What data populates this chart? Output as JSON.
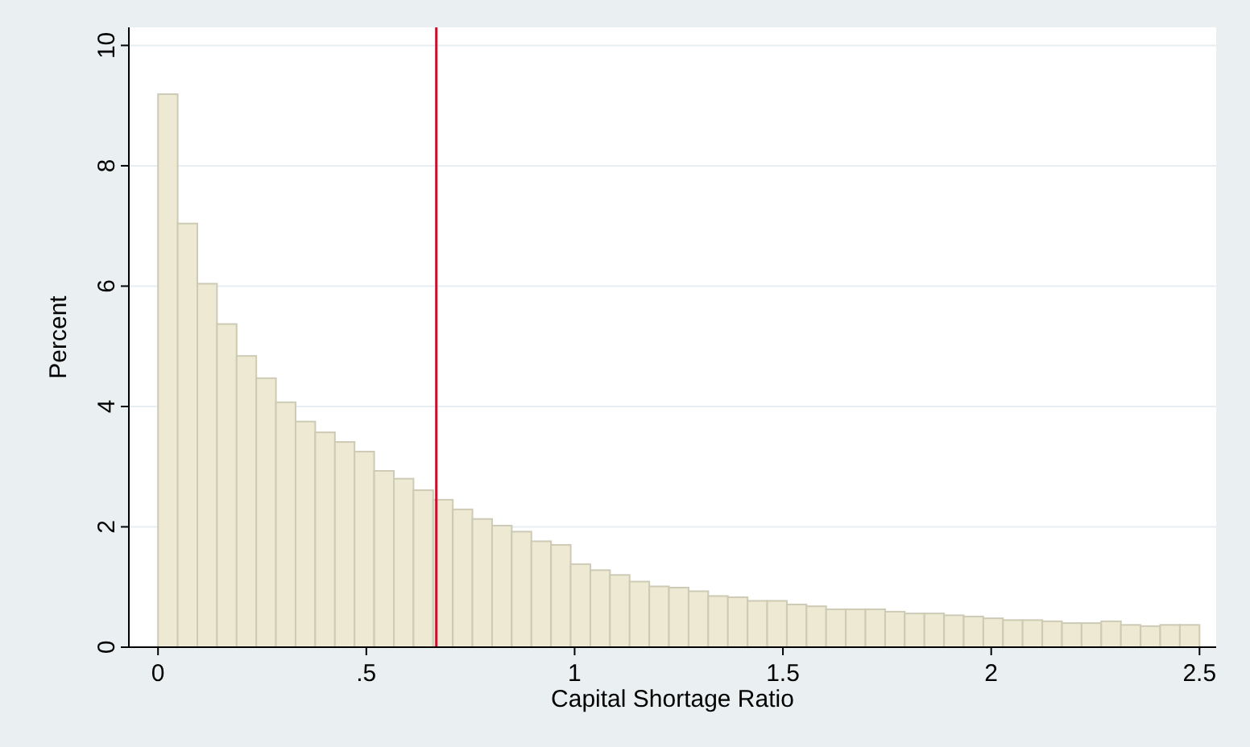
{
  "chart_data": {
    "type": "histogram",
    "xlabel": "Capital Shortage Ratio",
    "ylabel": "Percent",
    "bins": [
      0,
      0.04717,
      0.09434,
      0.14151,
      0.18868,
      0.23585,
      0.28302,
      0.33019,
      0.37736,
      0.42453,
      0.4717,
      0.51887,
      0.56604,
      0.61321,
      0.66038,
      0.70755,
      0.75472,
      0.80189,
      0.84906,
      0.89623,
      0.9434,
      0.99057,
      1.03774,
      1.08491,
      1.13208,
      1.17925,
      1.22642,
      1.27358,
      1.32075,
      1.36792,
      1.41509,
      1.46226,
      1.50943,
      1.5566,
      1.60377,
      1.65094,
      1.69811,
      1.74528,
      1.79245,
      1.83962,
      1.88679,
      1.93396,
      1.98113,
      2.0283,
      2.07547,
      2.12264,
      2.16981,
      2.21698,
      2.26415,
      2.31132,
      2.35849,
      2.40566,
      2.45283,
      2.5
    ],
    "values": [
      9.19,
      7.04,
      6.04,
      5.37,
      4.84,
      4.47,
      4.07,
      3.75,
      3.57,
      3.41,
      3.25,
      2.93,
      2.8,
      2.61,
      2.45,
      2.29,
      2.13,
      2.02,
      1.92,
      1.76,
      1.7,
      1.38,
      1.28,
      1.2,
      1.09,
      1.01,
      0.99,
      0.93,
      0.85,
      0.83,
      0.77,
      0.77,
      0.71,
      0.68,
      0.63,
      0.63,
      0.63,
      0.59,
      0.56,
      0.56,
      0.53,
      0.51,
      0.48,
      0.45,
      0.45,
      0.43,
      0.4,
      0.4,
      0.43,
      0.37,
      0.35,
      0.37,
      0.37
    ],
    "color": "#ede9d2",
    "xlim": [
      -0.07,
      2.54
    ],
    "xticks": [
      0,
      {
        "value": 0.5,
        "label": ".5"
      },
      1,
      1.5,
      2,
      2.5
    ],
    "ylim": [
      0,
      10.3
    ],
    "yticks": [
      0,
      2,
      4,
      6,
      8,
      10
    ],
    "grid": "y",
    "ref_lines": [
      {
        "axis": "x",
        "value": 0.668,
        "color": "#c8102e"
      }
    ]
  }
}
